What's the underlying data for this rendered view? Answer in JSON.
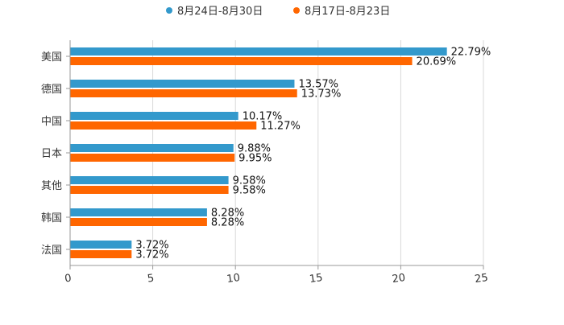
{
  "chart_data": {
    "type": "bar",
    "orientation": "horizontal",
    "title": "",
    "xlabel": "",
    "ylabel": "",
    "xlim": [
      0,
      25
    ],
    "xticks": [
      0,
      5,
      10,
      15,
      20,
      25
    ],
    "grid": true,
    "legend_position": "top-center",
    "categories": [
      "美国",
      "德国",
      "中国",
      "日本",
      "其他",
      "韩国",
      "法国"
    ],
    "series": [
      {
        "name": "8月24日-8月30日",
        "color": "#3399cc",
        "values": [
          22.79,
          13.57,
          10.17,
          9.88,
          9.58,
          8.28,
          3.72
        ],
        "labels": [
          "22.79%",
          "13.57%",
          "10.17%",
          "9.88%",
          "9.58%",
          "8.28%",
          "3.72%"
        ]
      },
      {
        "name": "8月17日-8月23日",
        "color": "#ff6600",
        "values": [
          20.69,
          13.73,
          11.27,
          9.95,
          9.58,
          8.28,
          3.72
        ],
        "labels": [
          "20.69%",
          "13.73%",
          "11.27%",
          "9.95%",
          "9.58%",
          "8.28%",
          "3.72%"
        ]
      }
    ]
  }
}
